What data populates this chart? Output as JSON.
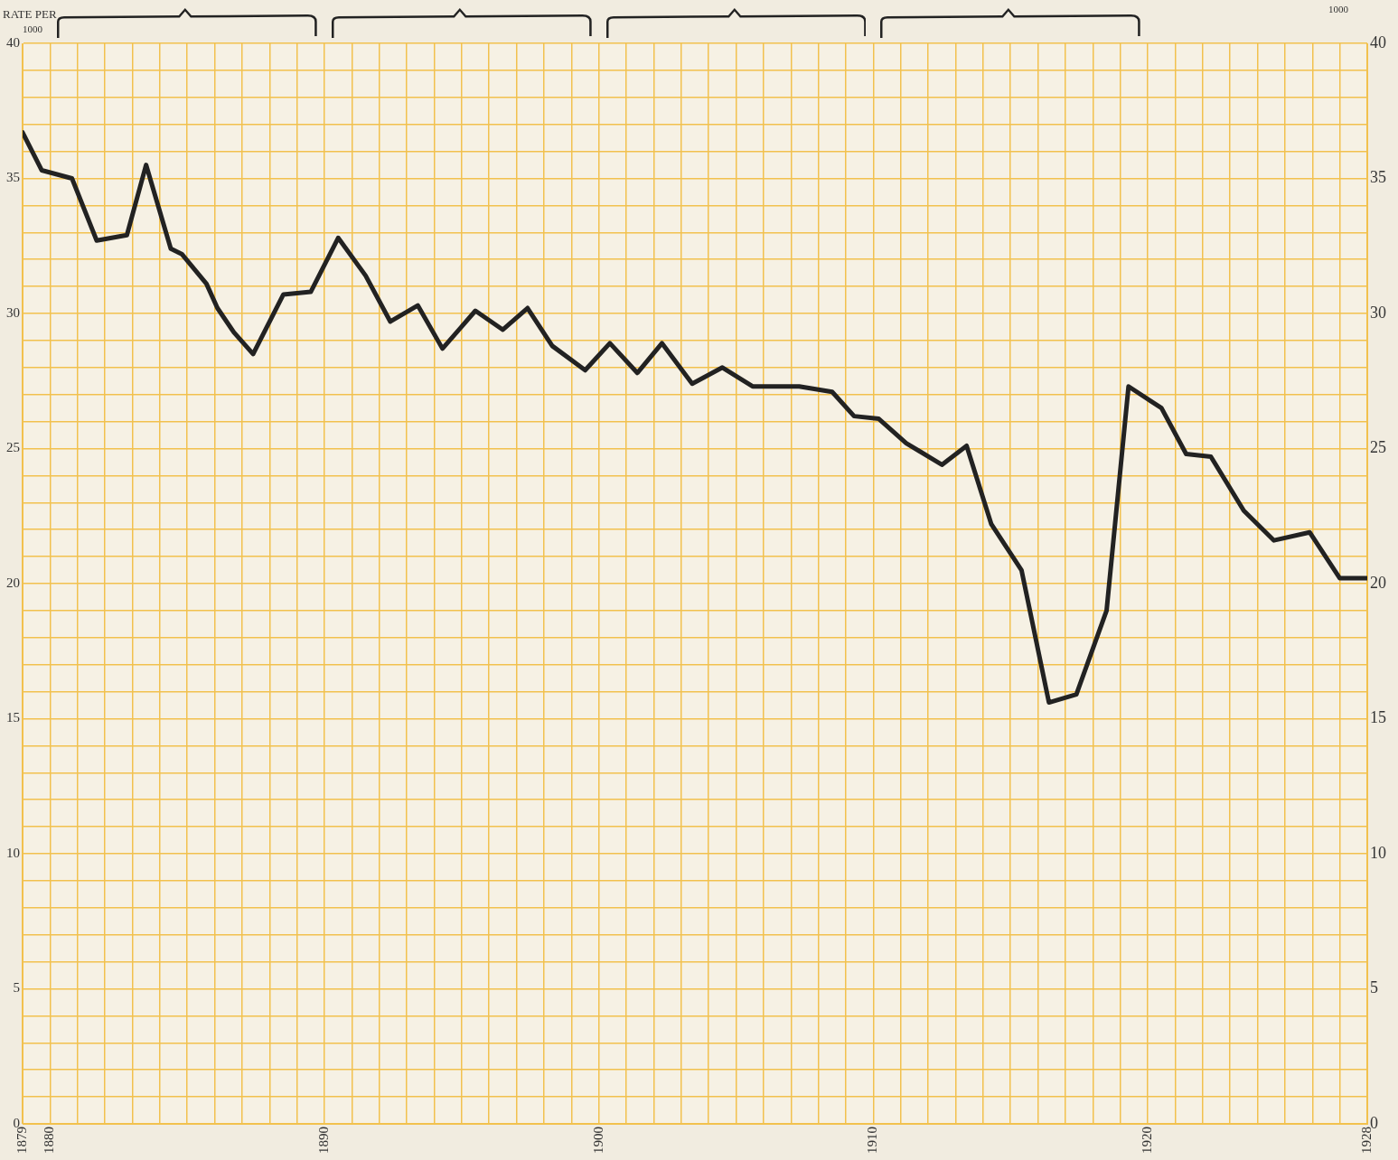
{
  "chart_data": {
    "type": "line",
    "ylabel": "RATE PER\n1000",
    "y2label": "1000",
    "x": [
      1879.0,
      1879.7,
      1880.8,
      1881.7,
      1882.8,
      1883.5,
      1884.4,
      1884.8,
      1885.7,
      1886.1,
      1886.7,
      1887.4,
      1888.5,
      1889.5,
      1890.5,
      1891.5,
      1892.4,
      1893.4,
      1894.3,
      1895.5,
      1896.5,
      1897.4,
      1898.3,
      1899.5,
      1900.4,
      1901.4,
      1902.3,
      1903.4,
      1904.5,
      1905.6,
      1907.3,
      1908.5,
      1909.3,
      1910.2,
      1911.2,
      1912.5,
      1913.4,
      1914.3,
      1915.4,
      1916.4,
      1917.4,
      1918.5,
      1919.3,
      1920.5,
      1921.4,
      1922.3,
      1923.5,
      1924.6,
      1925.9,
      1927.0,
      1928.0
    ],
    "series": [
      {
        "color": "#222222",
        "values": [
          36.7,
          35.3,
          35.0,
          32.7,
          32.9,
          35.5,
          32.4,
          32.2,
          31.1,
          30.2,
          29.3,
          28.5,
          30.7,
          30.8,
          32.8,
          31.4,
          29.7,
          30.3,
          28.7,
          30.1,
          29.4,
          30.2,
          28.8,
          27.9,
          28.9,
          27.8,
          28.9,
          27.4,
          28.0,
          27.3,
          27.3,
          27.1,
          26.2,
          26.1,
          25.2,
          24.4,
          25.1,
          22.2,
          20.5,
          15.6,
          15.9,
          19.0,
          27.3,
          26.5,
          24.8,
          24.7,
          22.7,
          21.6,
          21.9,
          20.2,
          20.2
        ]
      }
    ],
    "xlim": [
      1879,
      1928
    ],
    "xticks": [
      1879,
      1880,
      {
        "value": 1881,
        "label": null
      },
      {
        "value": 1882,
        "label": null
      },
      {
        "value": 1883,
        "label": null
      },
      {
        "value": 1884,
        "label": null
      },
      {
        "value": 1885,
        "label": null
      },
      {
        "value": 1886,
        "label": null
      },
      {
        "value": 1887,
        "label": null
      },
      {
        "value": 1888,
        "label": null
      },
      {
        "value": 1889,
        "label": null
      },
      1890,
      {
        "value": 1891,
        "label": null
      },
      {
        "value": 1892,
        "label": null
      },
      {
        "value": 1893,
        "label": null
      },
      {
        "value": 1894,
        "label": null
      },
      {
        "value": 1895,
        "label": null
      },
      {
        "value": 1896,
        "label": null
      },
      {
        "value": 1897,
        "label": null
      },
      {
        "value": 1898,
        "label": null
      },
      {
        "value": 1899,
        "label": null
      },
      1900,
      {
        "value": 1901,
        "label": null
      },
      {
        "value": 1902,
        "label": null
      },
      {
        "value": 1903,
        "label": null
      },
      {
        "value": 1904,
        "label": null
      },
      {
        "value": 1905,
        "label": null
      },
      {
        "value": 1906,
        "label": null
      },
      {
        "value": 1907,
        "label": null
      },
      {
        "value": 1908,
        "label": null
      },
      {
        "value": 1909,
        "label": null
      },
      1910,
      {
        "value": 1911,
        "label": null
      },
      {
        "value": 1912,
        "label": null
      },
      {
        "value": 1913,
        "label": null
      },
      {
        "value": 1914,
        "label": null
      },
      {
        "value": 1915,
        "label": null
      },
      {
        "value": 1916,
        "label": null
      },
      {
        "value": 1917,
        "label": null
      },
      {
        "value": 1918,
        "label": null
      },
      {
        "value": 1919,
        "label": null
      },
      1920,
      {
        "value": 1921,
        "label": null
      },
      {
        "value": 1922,
        "label": null
      },
      {
        "value": 1923,
        "label": null
      },
      {
        "value": 1924,
        "label": null
      },
      {
        "value": 1925,
        "label": null
      },
      {
        "value": 1926,
        "label": null
      },
      {
        "value": 1927,
        "label": null
      },
      1928
    ],
    "ylim": [
      0,
      40
    ],
    "yticks": [
      0,
      {
        "value": 1,
        "label": null
      },
      {
        "value": 2,
        "label": null
      },
      {
        "value": 3,
        "label": null
      },
      {
        "value": 4,
        "label": null
      },
      5,
      {
        "value": 6,
        "label": null
      },
      {
        "value": 7,
        "label": null
      },
      {
        "value": 8,
        "label": null
      },
      {
        "value": 9,
        "label": null
      },
      10,
      {
        "value": 11,
        "label": null
      },
      {
        "value": 12,
        "label": null
      },
      {
        "value": 13,
        "label": null
      },
      {
        "value": 14,
        "label": null
      },
      15,
      {
        "value": 16,
        "label": null
      },
      {
        "value": 17,
        "label": null
      },
      {
        "value": 18,
        "label": null
      },
      {
        "value": 19,
        "label": null
      },
      20,
      {
        "value": 21,
        "label": null
      },
      {
        "value": 22,
        "label": null
      },
      {
        "value": 23,
        "label": null
      },
      {
        "value": 24,
        "label": null
      },
      25,
      {
        "value": 26,
        "label": null
      },
      {
        "value": 27,
        "label": null
      },
      {
        "value": 28,
        "label": null
      },
      {
        "value": 29,
        "label": null
      },
      30,
      {
        "value": 31,
        "label": null
      },
      {
        "value": 32,
        "label": null
      },
      {
        "value": 33,
        "label": null
      },
      {
        "value": 34,
        "label": null
      },
      35,
      {
        "value": 36,
        "label": null
      },
      {
        "value": 37,
        "label": null
      },
      {
        "value": 38,
        "label": null
      },
      {
        "value": 39,
        "label": null
      },
      40
    ],
    "y2lim": [
      0,
      40
    ],
    "y2ticks": [
      0,
      5,
      10,
      15,
      20,
      25,
      30,
      35,
      40
    ],
    "grid": true,
    "legend": false,
    "marker": "none",
    "line_style": "solid"
  }
}
